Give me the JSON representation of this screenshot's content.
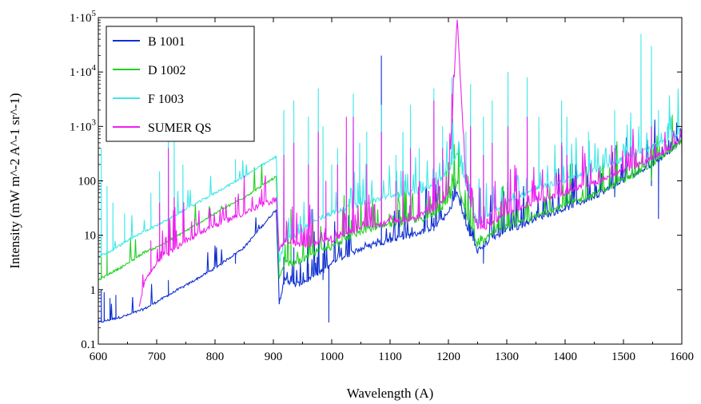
{
  "chart_data": {
    "type": "line",
    "title": "",
    "xlabel": "Wavelength (A)",
    "ylabel": "Intensity (mW m^-2 A^-1 sr^-1)",
    "xlim": [
      600,
      1600
    ],
    "ylim": [
      0.1,
      100000
    ],
    "y_scale": "log",
    "grid": false,
    "legend_position": "top-left",
    "x_ticks": [
      600,
      700,
      800,
      900,
      1000,
      1100,
      1200,
      1300,
      1400,
      1500,
      1600
    ],
    "x_tick_labels": [
      "600",
      "700",
      "800",
      "900",
      "1000",
      "1100",
      "1200",
      "1300",
      "1400",
      "1500",
      "1600"
    ],
    "y_ticks": [
      0.1,
      1,
      10,
      100,
      1000,
      10000,
      100000
    ],
    "y_tick_labels": [
      {
        "text": "0.1"
      },
      {
        "text": "1"
      },
      {
        "text": "10"
      },
      {
        "text": "100"
      },
      {
        "base": "1·10",
        "exp": "3"
      },
      {
        "base": "1·10",
        "exp": "4"
      },
      {
        "base": "1·10",
        "exp": "5"
      }
    ],
    "series": [
      {
        "name": "B 1001",
        "color": "#1030d0",
        "x": [
          600,
          620,
          650,
          680,
          700,
          750,
          800,
          850,
          905,
          910,
          920,
          940,
          960,
          980,
          1000,
          1020,
          1040,
          1060,
          1080,
          1100,
          1120,
          1140,
          1160,
          1180,
          1200,
          1215,
          1230,
          1250,
          1270,
          1300,
          1320,
          1350,
          1400,
          1450,
          1500,
          1550,
          1580,
          1600
        ],
        "y": [
          0.25,
          0.28,
          0.34,
          0.45,
          0.6,
          1.2,
          2.5,
          6,
          30,
          0.6,
          1.5,
          1.2,
          1.5,
          2,
          3,
          4,
          5,
          6,
          7,
          8,
          9,
          10,
          12,
          15,
          25,
          60,
          15,
          5,
          8,
          12,
          14,
          20,
          30,
          50,
          100,
          200,
          350,
          600
        ],
        "peaks": [
          [
            605,
            1
          ],
          [
            610,
            0.9
          ],
          [
            620,
            0.7
          ],
          [
            630,
            0.8
          ],
          [
            720,
            1.5
          ],
          [
            835,
            3
          ],
          [
            918,
            4
          ],
          [
            935,
            6
          ],
          [
            960,
            3
          ],
          [
            975,
            4
          ],
          [
            985,
            1.5
          ],
          [
            995,
            0.25
          ],
          [
            1030,
            4
          ],
          [
            1085,
            20000
          ],
          [
            1175,
            12
          ],
          [
            1238,
            25
          ],
          [
            1260,
            3
          ],
          [
            1335,
            20
          ],
          [
            1400,
            40
          ],
          [
            1485,
            50
          ],
          [
            1548,
            80
          ],
          [
            1560,
            20
          ],
          [
            1600,
            300
          ]
        ]
      },
      {
        "name": "D 1002",
        "color": "#20d020",
        "x": [
          600,
          620,
          650,
          680,
          700,
          750,
          800,
          850,
          905,
          910,
          920,
          940,
          960,
          980,
          1000,
          1020,
          1040,
          1060,
          1080,
          1100,
          1120,
          1140,
          1160,
          1180,
          1200,
          1215,
          1230,
          1250,
          1270,
          1300,
          1320,
          1350,
          1400,
          1450,
          1500,
          1550,
          1580,
          1600
        ],
        "y": [
          1.5,
          2,
          3,
          5,
          6,
          12,
          25,
          50,
          120,
          1.5,
          3,
          3,
          4,
          5,
          6,
          8,
          10,
          12,
          14,
          15,
          16,
          18,
          20,
          25,
          40,
          90,
          25,
          6,
          10,
          14,
          16,
          22,
          35,
          55,
          100,
          200,
          350,
          550
        ],
        "peaks": [
          [
            605,
            4
          ],
          [
            615,
            5
          ],
          [
            720,
            10
          ],
          [
            835,
            40
          ],
          [
            930,
            30
          ],
          [
            960,
            20
          ],
          [
            1030,
            40
          ],
          [
            1085,
            200
          ],
          [
            1175,
            40
          ],
          [
            1238,
            60
          ],
          [
            1335,
            50
          ],
          [
            1400,
            60
          ],
          [
            1485,
            80
          ],
          [
            1548,
            100
          ]
        ]
      },
      {
        "name": "F 1003",
        "color": "#40e8e8",
        "x": [
          600,
          620,
          650,
          680,
          700,
          750,
          800,
          850,
          905,
          910,
          920,
          940,
          960,
          980,
          1000,
          1020,
          1040,
          1060,
          1080,
          1100,
          1120,
          1140,
          1160,
          1180,
          1200,
          1215,
          1230,
          1250,
          1270,
          1300,
          1320,
          1350,
          1400,
          1450,
          1500,
          1550,
          1580,
          1600
        ],
        "y": [
          4,
          5,
          8,
          12,
          15,
          30,
          60,
          120,
          280,
          3,
          8,
          10,
          15,
          20,
          25,
          30,
          35,
          40,
          45,
          50,
          55,
          60,
          70,
          90,
          150,
          300,
          80,
          15,
          25,
          40,
          50,
          70,
          100,
          150,
          250,
          400,
          600,
          800
        ],
        "peaks": [
          [
            605,
            400
          ],
          [
            615,
            80
          ],
          [
            625,
            40
          ],
          [
            645,
            25
          ],
          [
            690,
            60
          ],
          [
            705,
            150
          ],
          [
            720,
            3000
          ],
          [
            730,
            600
          ],
          [
            745,
            200
          ],
          [
            835,
            250
          ],
          [
            918,
            2000
          ],
          [
            935,
            3000
          ],
          [
            960,
            1500
          ],
          [
            977,
            5000
          ],
          [
            985,
            1000
          ],
          [
            1000,
            200
          ],
          [
            1010,
            400
          ],
          [
            1025,
            300
          ],
          [
            1037,
            4000
          ],
          [
            1048,
            500
          ],
          [
            1060,
            800
          ],
          [
            1085,
            2500
          ],
          [
            1110,
            300
          ],
          [
            1122,
            800
          ],
          [
            1135,
            2500
          ],
          [
            1150,
            400
          ],
          [
            1175,
            5000
          ],
          [
            1190,
            1000
          ],
          [
            1206,
            8000
          ],
          [
            1230,
            800
          ],
          [
            1238,
            6000
          ],
          [
            1260,
            1500
          ],
          [
            1275,
            3000
          ],
          [
            1302,
            10000
          ],
          [
            1335,
            8000
          ],
          [
            1355,
            1500
          ],
          [
            1394,
            3000
          ],
          [
            1403,
            1500
          ],
          [
            1440,
            800
          ],
          [
            1485,
            2000
          ],
          [
            1530,
            50000
          ],
          [
            1548,
            30000
          ],
          [
            1560,
            2000
          ],
          [
            1575,
            1000
          ]
        ]
      },
      {
        "name": "SUMER QS",
        "color": "#f020f0",
        "x": [
          670,
          680,
          700,
          750,
          800,
          850,
          880,
          905,
          910,
          920,
          940,
          960,
          980,
          1000,
          1020,
          1040,
          1060,
          1080,
          1100,
          1120,
          1140,
          1160,
          1180,
          1200,
          1215,
          1230,
          1250,
          1270,
          1300,
          1320,
          1350,
          1400,
          1450,
          1500,
          1550,
          1580,
          1600
        ],
        "y": [
          0.5,
          1.5,
          3,
          8,
          15,
          25,
          35,
          45,
          5,
          8,
          7,
          6,
          8,
          8,
          10,
          12,
          15,
          15,
          18,
          18,
          20,
          25,
          30,
          60,
          100000,
          80,
          12,
          15,
          25,
          30,
          40,
          60,
          90,
          150,
          250,
          400,
          600
        ],
        "peaks": [
          [
            690,
            8
          ],
          [
            705,
            40
          ],
          [
            720,
            400
          ],
          [
            730,
            50
          ],
          [
            745,
            30
          ],
          [
            765,
            20
          ],
          [
            790,
            30
          ],
          [
            835,
            50
          ],
          [
            918,
            300
          ],
          [
            935,
            500
          ],
          [
            960,
            200
          ],
          [
            977,
            800
          ],
          [
            990,
            100
          ],
          [
            1010,
            200
          ],
          [
            1025,
            1500
          ],
          [
            1037,
            1500
          ],
          [
            1060,
            200
          ],
          [
            1085,
            800
          ],
          [
            1110,
            100
          ],
          [
            1122,
            150
          ],
          [
            1135,
            400
          ],
          [
            1150,
            100
          ],
          [
            1175,
            3000
          ],
          [
            1190,
            400
          ],
          [
            1206,
            4000
          ],
          [
            1238,
            1000
          ],
          [
            1260,
            300
          ],
          [
            1275,
            500
          ],
          [
            1302,
            1000
          ],
          [
            1335,
            1500
          ],
          [
            1394,
            500
          ],
          [
            1403,
            300
          ],
          [
            1485,
            400
          ],
          [
            1548,
            1000
          ],
          [
            1560,
            300
          ]
        ]
      }
    ]
  }
}
